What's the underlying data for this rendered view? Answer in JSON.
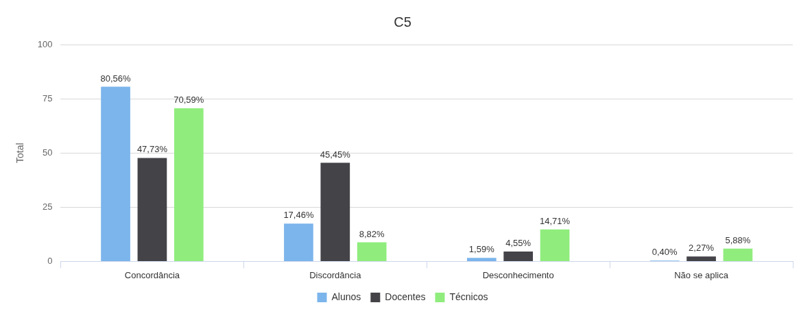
{
  "chart_data": {
    "type": "bar",
    "title": "C5",
    "ylabel": "Total",
    "categories": [
      "Concordância",
      "Discordância",
      "Desconhecimento",
      "Não se aplica"
    ],
    "series": [
      {
        "name": "Alunos",
        "color": "#7cb5ec",
        "values": [
          80.56,
          17.46,
          1.59,
          0.4
        ],
        "value_labels": [
          "80,56%",
          "17,46%",
          "1,59%",
          "0,40%"
        ]
      },
      {
        "name": "Docentes",
        "color": "#434348",
        "values": [
          47.73,
          45.45,
          4.55,
          2.27
        ],
        "value_labels": [
          "47,73%",
          "45,45%",
          "4,55%",
          "2,27%"
        ]
      },
      {
        "name": "Técnicos",
        "color": "#90ed7d",
        "values": [
          70.59,
          8.82,
          14.71,
          5.88
        ],
        "value_labels": [
          "70,59%",
          "8,82%",
          "14,71%",
          "5,88%"
        ]
      }
    ],
    "ylim": [
      0,
      100
    ],
    "yticks": [
      0,
      25,
      50,
      75,
      100
    ],
    "grid": "y",
    "legend": "bottom"
  }
}
